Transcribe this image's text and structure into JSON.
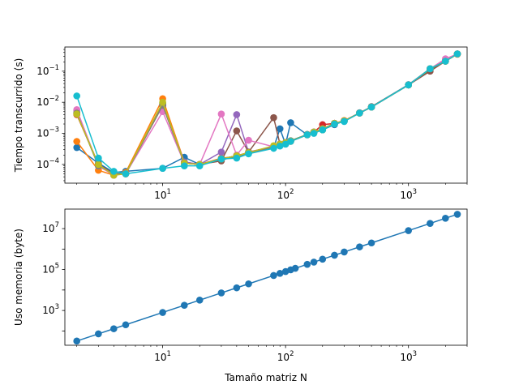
{
  "figure": {
    "background": "#ffffff"
  },
  "chart_data": [
    {
      "type": "line",
      "xscale": "log",
      "yscale": "log",
      "xlim": [
        1.6,
        3000
      ],
      "ylim": [
        2.5e-05,
        0.6
      ],
      "xlabel": "",
      "ylabel": "Tiempo transcurrido (s)",
      "grid": false,
      "xticks": [
        {
          "base": "10",
          "exp": "1",
          "value": 10
        },
        {
          "base": "10",
          "exp": "2",
          "value": 100
        },
        {
          "base": "10",
          "exp": "3",
          "value": 1000
        }
      ],
      "yticks": [
        {
          "base": "10",
          "exp": "−4",
          "value": 0.0001
        },
        {
          "base": "10",
          "exp": "−3",
          "value": 0.001
        },
        {
          "base": "10",
          "exp": "−2",
          "value": 0.01
        },
        {
          "base": "10",
          "exp": "−1",
          "value": 0.1
        }
      ],
      "x": [
        2,
        3,
        4,
        5,
        10,
        15,
        20,
        30,
        40,
        50,
        80,
        90,
        100,
        110,
        150,
        170,
        200,
        250,
        300,
        400,
        500,
        1000,
        1500,
        2000,
        2500
      ],
      "series": [
        {
          "color": "#1f77b4",
          "values": [
            0.00035,
            0.00011,
            5.5e-05,
            6e-05,
            7.5e-05,
            0.00017,
            0.0001,
            0.00014,
            0.00018,
            0.00023,
            0.00035,
            0.0014,
            0.00045,
            0.0022,
            0.0009,
            0.0011,
            0.0013,
            0.0019,
            0.0025,
            0.0045,
            0.0072,
            0.037,
            0.12,
            0.21,
            0.36
          ]
        },
        {
          "color": "#ff7f0e",
          "values": [
            0.00055,
            6.5e-05,
            4.5e-05,
            5.5e-05,
            0.013,
            0.00012,
            0.0001,
            0.00016,
            0.00018,
            0.00025,
            0.00038,
            0.00045,
            0.0005,
            0.00055,
            0.0009,
            0.0011,
            0.0014,
            0.0021,
            0.0026,
            0.0045,
            0.007,
            0.036,
            0.11,
            0.21,
            0.35
          ]
        },
        {
          "color": "#2ca02c",
          "values": [
            0.0045,
            9e-05,
            5e-05,
            5e-05,
            0.009,
            0.00011,
            0.0001,
            0.00015,
            0.00019,
            0.00024,
            0.00037,
            0.00045,
            0.0005,
            0.00058,
            0.00092,
            0.0011,
            0.0013,
            0.002,
            0.0025,
            0.0046,
            0.0071,
            0.036,
            0.115,
            0.21,
            0.36
          ]
        },
        {
          "color": "#d62728",
          "values": [
            0.004,
            0.0001,
            5e-05,
            5e-05,
            0.008,
            0.00011,
            0.0001,
            0.00015,
            0.00019,
            0.00024,
            0.00036,
            0.00042,
            0.0005,
            0.00056,
            0.0009,
            0.0011,
            0.0019,
            0.0021,
            0.0025,
            0.0045,
            0.007,
            0.036,
            0.12,
            0.22,
            0.36
          ]
        },
        {
          "color": "#9467bd",
          "values": [
            0.0055,
            9e-05,
            5e-05,
            5e-05,
            0.008,
            0.00012,
            0.0001,
            0.00025,
            0.004,
            0.00025,
            0.00037,
            0.00045,
            0.0005,
            0.00057,
            0.0009,
            0.0011,
            0.0014,
            0.002,
            0.0025,
            0.0046,
            0.007,
            0.036,
            0.12,
            0.22,
            0.36
          ]
        },
        {
          "color": "#8c564b",
          "values": [
            0.0045,
            0.0001,
            5e-05,
            5e-05,
            0.008,
            0.00011,
            0.0001,
            0.00013,
            0.0012,
            0.00025,
            0.0032,
            0.00045,
            0.00048,
            0.00057,
            0.00092,
            0.0011,
            0.0014,
            0.0021,
            0.0025,
            0.0045,
            0.0072,
            0.036,
            0.1,
            0.21,
            0.36
          ]
        },
        {
          "color": "#e377c2",
          "values": [
            0.0058,
            9e-05,
            4.5e-05,
            5e-05,
            0.005,
            0.00011,
            0.0001,
            0.0042,
            0.0002,
            0.0006,
            0.00037,
            0.00045,
            0.0005,
            0.00056,
            0.0009,
            0.0011,
            0.0014,
            0.0021,
            0.0025,
            0.0045,
            0.007,
            0.036,
            0.12,
            0.25,
            0.36
          ]
        },
        {
          "color": "#7f7f7f",
          "values": [
            0.0045,
            9e-05,
            5e-05,
            5e-05,
            0.008,
            0.00011,
            0.0001,
            0.00015,
            0.00019,
            0.00024,
            0.00036,
            0.00045,
            0.0005,
            0.00056,
            0.0009,
            0.0011,
            0.0014,
            0.0021,
            0.0025,
            0.0045,
            0.007,
            0.036,
            0.12,
            0.21,
            0.36
          ]
        },
        {
          "color": "#bcbd22",
          "values": [
            0.0042,
            0.0001,
            4.5e-05,
            5e-05,
            0.01,
            0.00011,
            0.0001,
            0.00015,
            0.00019,
            0.00024,
            0.0004,
            0.00045,
            0.0005,
            0.00056,
            0.0009,
            0.0011,
            0.0014,
            0.0021,
            0.0025,
            0.0045,
            0.007,
            0.036,
            0.12,
            0.21,
            0.36
          ]
        },
        {
          "color": "#17becf",
          "values": [
            0.016,
            0.00016,
            6e-05,
            5e-05,
            7.5e-05,
            9e-05,
            9e-05,
            0.00015,
            0.00016,
            0.00022,
            0.00033,
            0.00039,
            0.00045,
            0.00055,
            0.0009,
            0.001,
            0.0013,
            0.002,
            0.0024,
            0.0045,
            0.007,
            0.036,
            0.12,
            0.21,
            0.36
          ]
        }
      ]
    },
    {
      "type": "line",
      "xscale": "log",
      "yscale": "log",
      "xlim": [
        1.6,
        3000
      ],
      "ylim": [
        20,
        90000000
      ],
      "xlabel": "Tamaño matriz N",
      "ylabel": "Uso memoria (byte)",
      "grid": false,
      "xticks": [
        {
          "base": "10",
          "exp": "1",
          "value": 10
        },
        {
          "base": "10",
          "exp": "2",
          "value": 100
        },
        {
          "base": "10",
          "exp": "3",
          "value": 1000
        }
      ],
      "yticks": [
        {
          "base": "10",
          "exp": "3",
          "value": 1000
        },
        {
          "base": "10",
          "exp": "5",
          "value": 100000
        },
        {
          "base": "10",
          "exp": "7",
          "value": 10000000
        }
      ],
      "x": [
        2,
        3,
        4,
        5,
        10,
        15,
        20,
        30,
        40,
        50,
        80,
        90,
        100,
        110,
        120,
        150,
        170,
        200,
        250,
        300,
        400,
        500,
        1000,
        1500,
        2000,
        2500
      ],
      "series": [
        {
          "color": "#1f77b4",
          "values": [
            32,
            72,
            128,
            200,
            800,
            1800,
            3200,
            7200,
            12800,
            20000,
            51200,
            64800,
            80000,
            96800,
            115200,
            180000,
            231200,
            320000,
            500000,
            720000,
            1280000,
            2000000,
            8000000,
            18000000,
            32000000,
            50000000
          ]
        }
      ]
    }
  ]
}
